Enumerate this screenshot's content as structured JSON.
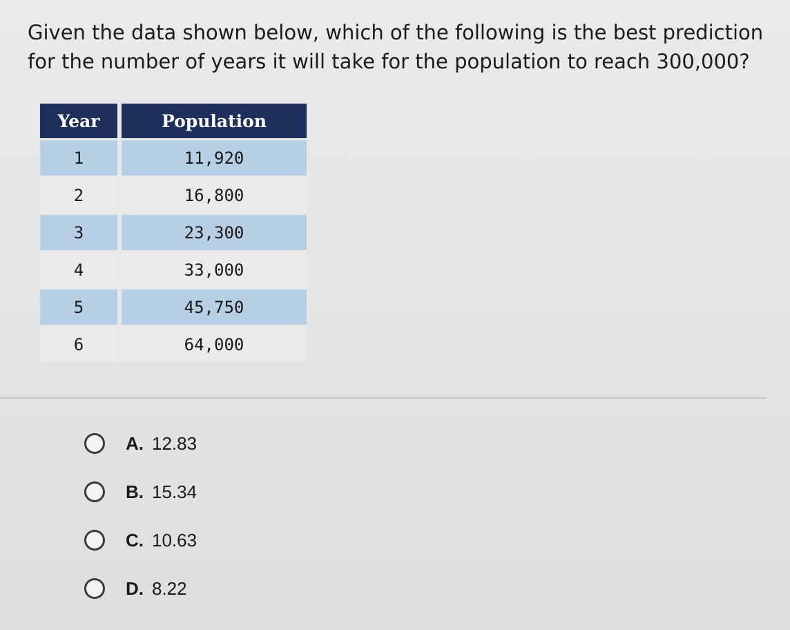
{
  "question": {
    "text": "Given the data shown below, which of the following is the best prediction for the number of years it will take for the population to reach 300,000?"
  },
  "table": {
    "headers": [
      "Year",
      "Population"
    ],
    "rows": [
      [
        "1",
        "11,920"
      ],
      [
        "2",
        "16,800"
      ],
      [
        "3",
        "23,300"
      ],
      [
        "4",
        "33,000"
      ],
      [
        "5",
        "45,750"
      ],
      [
        "6",
        "64,000"
      ]
    ],
    "colors": {
      "header_bg": "#1f2f5c",
      "shaded_row_bg": "#b7cfe4"
    }
  },
  "options": [
    {
      "letter": "A.",
      "value": "12.83",
      "selected": false
    },
    {
      "letter": "B.",
      "value": "15.34",
      "selected": false
    },
    {
      "letter": "C.",
      "value": "10.63",
      "selected": false
    },
    {
      "letter": "D.",
      "value": "8.22",
      "selected": false
    }
  ]
}
